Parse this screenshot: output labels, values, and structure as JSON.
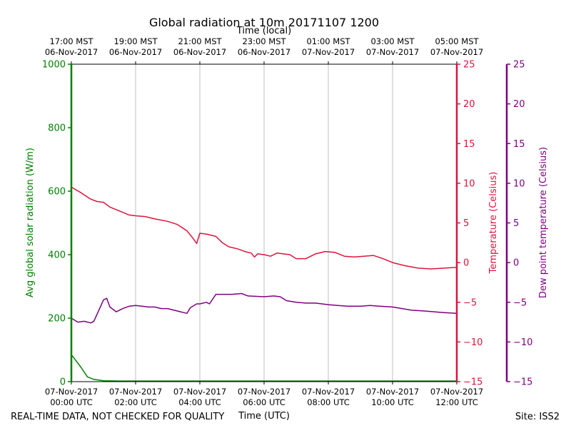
{
  "chart_data": {
    "type": "line",
    "title": "Global radiation at 10m 20171107 1200",
    "top_axis_label": "Time (local)",
    "xlabel": "Time (UTC)",
    "footer_left": "REAL-TIME DATA, NOT CHECKED FOR QUALITY",
    "footer_right": "Site: ISS2",
    "x_range_hours": [
      0,
      12
    ],
    "bottom_ticks": [
      {
        "h": 0,
        "date": "07-Nov-2017",
        "time": "00:00 UTC"
      },
      {
        "h": 2,
        "date": "07-Nov-2017",
        "time": "02:00 UTC"
      },
      {
        "h": 4,
        "date": "07-Nov-2017",
        "time": "04:00 UTC"
      },
      {
        "h": 6,
        "date": "07-Nov-2017",
        "time": "06:00 UTC"
      },
      {
        "h": 8,
        "date": "07-Nov-2017",
        "time": "08:00 UTC"
      },
      {
        "h": 10,
        "date": "07-Nov-2017",
        "time": "10:00 UTC"
      },
      {
        "h": 12,
        "date": "07-Nov-2017",
        "time": "12:00 UTC"
      }
    ],
    "top_ticks": [
      {
        "h": 0,
        "time": "17:00 MST",
        "date": "06-Nov-2017"
      },
      {
        "h": 2,
        "time": "19:00 MST",
        "date": "06-Nov-2017"
      },
      {
        "h": 4,
        "time": "21:00 MST",
        "date": "06-Nov-2017"
      },
      {
        "h": 6,
        "time": "23:00 MST",
        "date": "06-Nov-2017"
      },
      {
        "h": 8,
        "time": "01:00 MST",
        "date": "07-Nov-2017"
      },
      {
        "h": 10,
        "time": "03:00 MST",
        "date": "07-Nov-2017"
      },
      {
        "h": 12,
        "time": "05:00 MST",
        "date": "07-Nov-2017"
      }
    ],
    "axes": {
      "radiation": {
        "label": "Avg global solar radiation (W/m)",
        "color": "#008000",
        "ylim": [
          0,
          1000
        ],
        "ticks": [
          0,
          200,
          400,
          600,
          800,
          1000
        ],
        "tick_labels": [
          "0",
          "200",
          "400",
          "600",
          "800",
          "1000"
        ]
      },
      "temperature": {
        "label": "Temperature (Celsius)",
        "color": "#dc143c",
        "ylim": [
          -15,
          25
        ],
        "ticks": [
          -15,
          -10,
          -5,
          0,
          5,
          10,
          15,
          20,
          25
        ],
        "tick_labels": [
          "−15",
          "−10",
          "−5",
          "0",
          "5",
          "10",
          "15",
          "20",
          "25"
        ]
      },
      "dewpoint": {
        "label": "Dew point temperature (Celsius)",
        "color": "#800080",
        "ylim": [
          -15,
          25
        ],
        "ticks": [
          -15,
          -10,
          -5,
          0,
          5,
          10,
          15,
          20,
          25
        ],
        "tick_labels": [
          "−15",
          "−10",
          "−5",
          "0",
          "5",
          "10",
          "15",
          "20",
          "25"
        ]
      }
    },
    "series": [
      {
        "name": "Avg global solar radiation",
        "axis": "radiation",
        "x": [
          0,
          0.3,
          0.5,
          0.7,
          1.0,
          1.5,
          2,
          3,
          4,
          5,
          6,
          7,
          8,
          9,
          10,
          11,
          12
        ],
        "y": [
          85,
          45,
          15,
          7,
          3,
          2,
          2,
          2,
          2,
          2,
          2,
          2,
          2,
          2,
          2,
          2,
          2
        ]
      },
      {
        "name": "Temperature",
        "axis": "temperature",
        "x": [
          0,
          0.3,
          0.6,
          0.8,
          1.0,
          1.2,
          1.5,
          1.8,
          2.0,
          2.3,
          2.6,
          3.0,
          3.3,
          3.6,
          3.8,
          3.9,
          4.0,
          4.2,
          4.5,
          4.7,
          4.9,
          5.2,
          5.4,
          5.6,
          5.7,
          5.8,
          6.0,
          6.2,
          6.4,
          6.6,
          6.8,
          7.0,
          7.3,
          7.6,
          7.9,
          8.2,
          8.5,
          8.8,
          9.1,
          9.4,
          9.7,
          10.0,
          10.4,
          10.8,
          11.2,
          11.6,
          12.0
        ],
        "y": [
          9.5,
          8.8,
          8.0,
          7.7,
          7.6,
          7.0,
          6.5,
          6.0,
          5.9,
          5.8,
          5.5,
          5.2,
          4.8,
          4.0,
          3.0,
          2.4,
          3.7,
          3.6,
          3.3,
          2.5,
          2.0,
          1.7,
          1.4,
          1.2,
          0.7,
          1.1,
          1.0,
          0.8,
          1.2,
          1.1,
          1.0,
          0.5,
          0.5,
          1.1,
          1.4,
          1.3,
          0.8,
          0.7,
          0.8,
          0.9,
          0.5,
          0.0,
          -0.4,
          -0.7,
          -0.8,
          -0.7,
          -0.6
        ]
      },
      {
        "name": "Dew point temperature",
        "axis": "dewpoint",
        "x": [
          0,
          0.2,
          0.4,
          0.6,
          0.7,
          0.8,
          0.9,
          1.0,
          1.1,
          1.2,
          1.4,
          1.6,
          1.8,
          2.0,
          2.2,
          2.4,
          2.6,
          2.8,
          3.0,
          3.2,
          3.4,
          3.6,
          3.7,
          3.9,
          4.0,
          4.2,
          4.3,
          4.5,
          4.7,
          5.0,
          5.3,
          5.5,
          6.0,
          6.3,
          6.5,
          6.7,
          7.0,
          7.3,
          7.6,
          8.0,
          8.3,
          8.6,
          9.0,
          9.3,
          9.6,
          10.0,
          10.3,
          10.6,
          11.0,
          11.3,
          11.6,
          12.0
        ],
        "y": [
          -7.0,
          -7.5,
          -7.4,
          -7.6,
          -7.4,
          -6.5,
          -5.6,
          -4.7,
          -4.5,
          -5.6,
          -6.2,
          -5.8,
          -5.5,
          -5.4,
          -5.5,
          -5.6,
          -5.6,
          -5.8,
          -5.8,
          -6.0,
          -6.2,
          -6.4,
          -5.7,
          -5.2,
          -5.2,
          -5.0,
          -5.2,
          -4.0,
          -4.0,
          -4.0,
          -3.9,
          -4.2,
          -4.3,
          -4.2,
          -4.3,
          -4.8,
          -5.0,
          -5.1,
          -5.1,
          -5.3,
          -5.4,
          -5.5,
          -5.5,
          -5.4,
          -5.5,
          -5.6,
          -5.8,
          -6.0,
          -6.1,
          -6.2,
          -6.3,
          -6.4
        ]
      }
    ]
  }
}
